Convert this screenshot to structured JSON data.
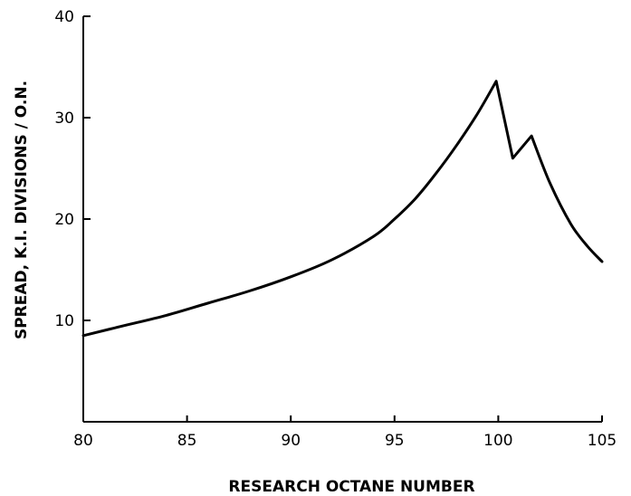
{
  "chart_data": {
    "type": "line",
    "title": "",
    "xlabel": "RESEARCH OCTANE NUMBER",
    "ylabel": "SPREAD, K.I. DIVISIONS / O.N.",
    "xlim": [
      80,
      105
    ],
    "ylim": [
      0,
      40
    ],
    "x_ticks": [
      80,
      85,
      90,
      95,
      100,
      105
    ],
    "y_ticks": [
      10,
      20,
      30,
      40
    ],
    "grid": false,
    "series": [
      {
        "x": [
          80,
          82,
          84,
          86,
          88,
          90,
          92,
          94,
          95,
          96,
          97,
          98,
          99,
          99.9,
          100.7,
          101.6,
          102.5,
          103.5,
          104.3,
          105
        ],
        "y": [
          8.5,
          9.5,
          10.5,
          11.7,
          12.9,
          14.3,
          16.0,
          18.3,
          20.0,
          22.0,
          24.5,
          27.3,
          30.4,
          33.6,
          26.0,
          28.2,
          23.5,
          19.5,
          17.3,
          15.8
        ]
      }
    ]
  }
}
